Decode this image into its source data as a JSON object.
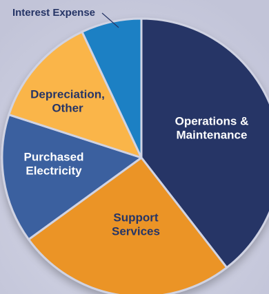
{
  "chart_data": {
    "type": "pie",
    "title": "",
    "start_angle_deg": 0,
    "direction": "clockwise",
    "slices": [
      {
        "name": "Operations & Maintenance",
        "label_lines": [
          "Operations &",
          "Maintenance"
        ],
        "value": 39.5,
        "color": "#263566",
        "label_color": "#ffffff"
      },
      {
        "name": "Support Services",
        "label_lines": [
          "Support",
          "Services"
        ],
        "value": 25.5,
        "color": "#eb9425",
        "label_color": "#263566"
      },
      {
        "name": "Purchased Electricity",
        "label_lines": [
          "Purchased",
          "Electricity"
        ],
        "value": 15,
        "color": "#3a619f",
        "label_color": "#ffffff"
      },
      {
        "name": "Depreciation, Other",
        "label_lines": [
          "Depreciation,",
          "Other"
        ],
        "value": 13,
        "color": "#fab54a",
        "label_color": "#263566"
      },
      {
        "name": "Interest Expense",
        "label_lines": [
          "Interest Expense"
        ],
        "value": 7,
        "color": "#1a80c4",
        "label_color": "#263566",
        "callout": true
      }
    ],
    "background_color": "#c9cbdd",
    "separator_color": "#d0d3e3"
  }
}
